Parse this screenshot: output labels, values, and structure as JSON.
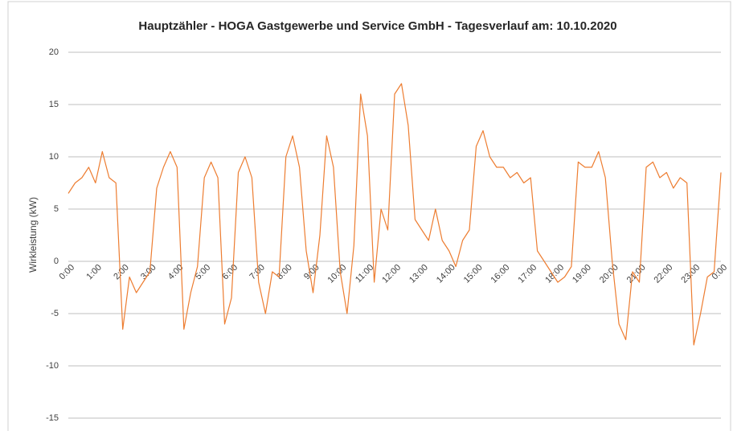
{
  "chart_data": {
    "type": "line",
    "title": "Hauptzähler - HOGA Gastgewerbe und Service GmbH - Tagesverlauf am: 10.10.2020",
    "y_label": "Wirkleistung (kW)",
    "categories": [
      "0:00",
      null,
      null,
      null,
      "1:00",
      null,
      null,
      null,
      "2:00",
      null,
      null,
      null,
      "3:00",
      null,
      null,
      null,
      "4:00",
      null,
      null,
      null,
      "5:00",
      null,
      null,
      null,
      "6:00",
      null,
      null,
      null,
      "7:00",
      null,
      null,
      null,
      "8:00",
      null,
      null,
      null,
      "9:00",
      null,
      null,
      null,
      "10:00",
      null,
      null,
      null,
      "11:00",
      null,
      null,
      null,
      "12:00",
      null,
      null,
      null,
      "13:00",
      null,
      null,
      null,
      "14:00",
      null,
      null,
      null,
      "15:00",
      null,
      null,
      null,
      "16:00",
      null,
      null,
      null,
      "17:00",
      null,
      null,
      null,
      "18:00",
      null,
      null,
      null,
      "19:00",
      null,
      null,
      null,
      "20:00",
      null,
      null,
      null,
      "21:00",
      null,
      null,
      null,
      "22:00",
      null,
      null,
      null,
      "23:00",
      null,
      null,
      null,
      "0:00"
    ],
    "values": [
      6.5,
      7.5,
      8,
      9,
      7.5,
      10.5,
      8,
      7.5,
      -6.5,
      -1.5,
      -3,
      -2,
      -1,
      7,
      9,
      10.5,
      9,
      -6.5,
      -3,
      -0.5,
      8,
      9.5,
      8,
      -6,
      -3.5,
      8.5,
      10,
      8,
      -2,
      -5,
      -1,
      -1.5,
      10,
      12,
      9,
      1,
      -3,
      2.5,
      12,
      9,
      -1,
      -5,
      1.5,
      16,
      12,
      -2,
      5,
      3,
      16,
      17,
      13,
      4,
      3,
      2,
      5,
      2,
      1,
      -0.5,
      2,
      3,
      11,
      12.5,
      10,
      9,
      9,
      8,
      8.5,
      7.5,
      8,
      1,
      0,
      -1,
      -2,
      -1.5,
      -0.5,
      9.5,
      9,
      9,
      10.5,
      8,
      0,
      -6,
      -7.5,
      -1,
      -2,
      9,
      9.5,
      8,
      8.5,
      7,
      8,
      7.5,
      -8,
      -5,
      -1.5,
      -1,
      8.5
    ],
    "color": "#ed7d31",
    "ylim": [
      -15,
      20
    ],
    "yticks": [
      -15,
      -10,
      -5,
      0,
      5,
      10,
      15,
      20
    ],
    "grid": true
  }
}
